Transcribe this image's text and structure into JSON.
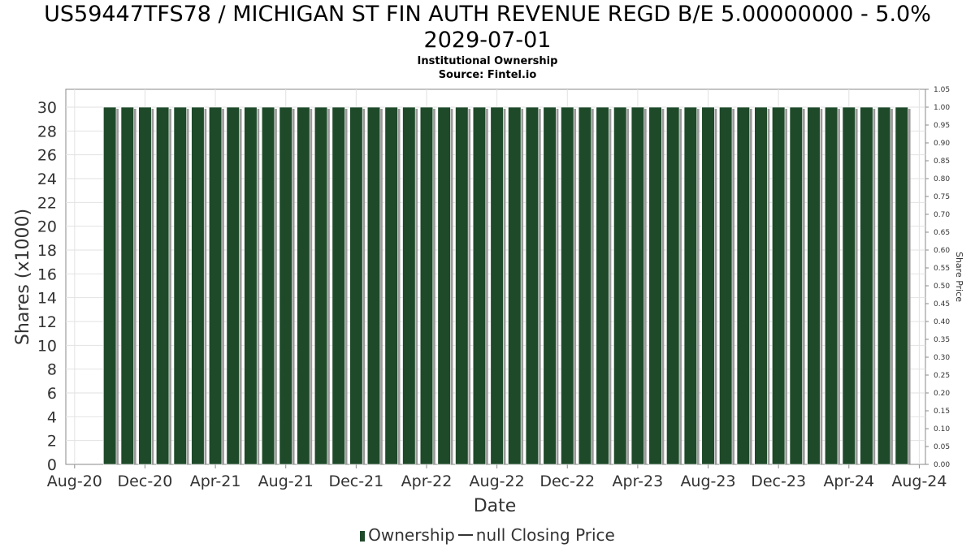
{
  "title_line1": "US59447TFS78 / MICHIGAN ST FIN AUTH REVENUE REGD B/E 5.00000000 - 5.0%",
  "title_line2": "2029-07-01",
  "subtitle": "Institutional Ownership",
  "source": "Source: Fintel.io",
  "legend": {
    "ownership": "Ownership",
    "price": "null Closing Price"
  },
  "chart_data": {
    "type": "bar",
    "xlabel": "Date",
    "ylabel": "Shares (x1000)",
    "y2label": "Share Price",
    "ylim": [
      0,
      31.5
    ],
    "y2lim": [
      0,
      1.05
    ],
    "yticks": [
      "0",
      "2",
      "4",
      "6",
      "8",
      "10",
      "12",
      "14",
      "16",
      "18",
      "20",
      "22",
      "24",
      "26",
      "28",
      "30"
    ],
    "y2ticks": [
      "0.00",
      "0.05",
      "0.10",
      "0.15",
      "0.20",
      "0.25",
      "0.30",
      "0.35",
      "0.40",
      "0.45",
      "0.50",
      "0.55",
      "0.60",
      "0.65",
      "0.70",
      "0.75",
      "0.80",
      "0.85",
      "0.90",
      "0.95",
      "1.00",
      "1.05"
    ],
    "xticks": [
      "Aug-20",
      "Dec-20",
      "Apr-21",
      "Aug-21",
      "Dec-21",
      "Apr-22",
      "Aug-22",
      "Dec-22",
      "Apr-23",
      "Aug-23",
      "Dec-23",
      "Apr-24",
      "Aug-24"
    ],
    "x_range": [
      "2020-08",
      "2024-08"
    ],
    "first_bar": "2020-10",
    "bar_count": 46,
    "bar_value": 30,
    "grid": true,
    "legend_position": "bottom",
    "colors": {
      "bar": "#1e4a2a",
      "bar_shadow": "#9a9a9a"
    }
  }
}
